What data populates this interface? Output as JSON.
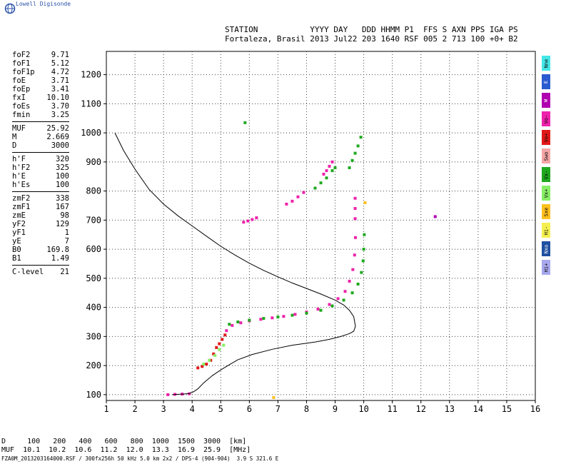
{
  "logo_text": "Lowell Digisonde",
  "header": {
    "line1": "STATION           YYYY DAY   DDD HHMM P1  FFS S AXN PPS IGA PS",
    "line2": "Fortaleza, Brasil 2013 Jul22 203 1640 RSF 005 2 713 100 +0+ B2"
  },
  "params": [
    {
      "label": "foF2",
      "value": "9.71"
    },
    {
      "label": "foF1",
      "value": "5.12"
    },
    {
      "label": "foF1p",
      "value": "4.72"
    },
    {
      "label": "foE",
      "value": "3.71"
    },
    {
      "label": "foEp",
      "value": "3.41"
    },
    {
      "label": "fxI",
      "value": "10.10"
    },
    {
      "label": "foEs",
      "value": "3.70"
    },
    {
      "label": "fmin",
      "value": "3.25"
    },
    {
      "sep": true
    },
    {
      "label": "MUF",
      "value": "25.92"
    },
    {
      "label": "M",
      "value": "2.669"
    },
    {
      "label": "D",
      "value": "3000"
    },
    {
      "sep": true
    },
    {
      "label": "h'F",
      "value": "320"
    },
    {
      "label": "h'F2",
      "value": "325"
    },
    {
      "label": "h'E",
      "value": "100"
    },
    {
      "label": "h'Es",
      "value": "100"
    },
    {
      "sep": true
    },
    {
      "label": "zmF2",
      "value": "338"
    },
    {
      "label": "zmF1",
      "value": "167"
    },
    {
      "label": "zmE",
      "value": "98"
    },
    {
      "label": "yF2",
      "value": "129"
    },
    {
      "label": "yF1",
      "value": "1"
    },
    {
      "label": "yE",
      "value": "7"
    },
    {
      "label": "B0",
      "value": "169.8"
    },
    {
      "label": "B1",
      "value": "1.49"
    },
    {
      "sep": true
    },
    {
      "label": "C-level",
      "value": "21"
    }
  ],
  "legend": [
    {
      "label": "Nne",
      "color": "#44e6e6"
    },
    {
      "label": "E",
      "color": "#2a5ad0"
    },
    {
      "label": "W",
      "color": "#b000b0"
    },
    {
      "label": "Vo-",
      "color": "#ee22aa"
    },
    {
      "label": "Vo+",
      "color": "#e01818"
    },
    {
      "label": "Swo",
      "color": "#f4a6a6"
    },
    {
      "label": "Vx-",
      "color": "#1fa81f"
    },
    {
      "label": "Vx+",
      "color": "#88ee66"
    },
    {
      "label": "Sxe",
      "color": "#ffc020"
    },
    {
      "label": "Hi-",
      "color": "#f4f050"
    },
    {
      "label": "Nxo",
      "color": "#1f4fa0"
    },
    {
      "label": "Hi+",
      "color": "#a8a8ee"
    }
  ],
  "muf_table": {
    "row1": "D     100   200   400   600   800  1000  1500  3000  [km]",
    "row2": "MUF  10.1  10.2  10.6  11.2  12.0  13.3  16.9  25.9  [MHz]"
  },
  "footer": "FZA0M_2013203164000.RSF / 300fx256h 50 kHz 5.0 km 2x2 / DPS-4 (904-904)  3.9 S 321.6 E",
  "chart_data": {
    "type": "scatter",
    "xlim": [
      1,
      16
    ],
    "ylim": [
      80,
      1280
    ],
    "x_ticks": [
      1,
      2,
      3,
      4,
      5,
      6,
      7,
      8,
      9,
      10,
      11,
      12,
      13,
      14,
      15,
      16
    ],
    "y_ticks": [
      100,
      200,
      300,
      400,
      500,
      600,
      700,
      800,
      900,
      1000,
      1100,
      1200
    ],
    "grid": true,
    "profile": {
      "x": [
        1.3,
        1.6,
        2.0,
        2.5,
        3.0,
        3.5,
        4.0,
        4.5,
        5.0,
        5.5,
        6.0,
        6.5,
        7.0,
        7.5,
        8.0,
        8.5,
        9.0,
        9.3,
        9.5,
        9.65,
        9.71,
        9.65,
        9.5,
        9.2,
        8.8,
        8.3,
        7.5,
        6.8,
        6.1,
        5.6,
        5.3,
        5.0,
        4.7,
        4.4,
        4.2,
        4.05,
        3.9,
        3.7,
        3.5,
        3.3
      ],
      "y": [
        1000,
        940,
        875,
        805,
        755,
        715,
        680,
        645,
        610,
        580,
        552,
        527,
        505,
        484,
        465,
        446,
        425,
        408,
        390,
        368,
        335,
        318,
        310,
        300,
        290,
        281,
        270,
        256,
        238,
        220,
        203,
        185,
        165,
        140,
        120,
        110,
        104,
        102,
        101,
        100
      ],
      "color": "#000000"
    },
    "echo_traces": [
      {
        "name": "Vo+",
        "color": "#e01818",
        "x": [
          4.2,
          4.35,
          4.5,
          4.65,
          4.75,
          4.85,
          4.95,
          5.05,
          5.15
        ],
        "y": [
          192,
          197,
          205,
          218,
          240,
          262,
          275,
          290,
          305
        ]
      },
      {
        "name": "Vx+",
        "color": "#88ee66",
        "x": [
          4.4,
          4.6,
          4.8,
          4.95,
          5.1
        ],
        "y": [
          205,
          218,
          235,
          255,
          270
        ]
      },
      {
        "name": "Vo-",
        "color": "#ee22aa",
        "x": [
          3.15,
          3.4,
          3.65,
          3.9,
          5.2,
          5.4,
          5.7,
          6.0,
          6.4,
          6.8,
          7.2,
          7.6,
          8.0,
          8.4,
          8.8,
          9.1,
          9.35,
          9.5,
          9.62,
          9.68,
          9.71,
          5.8,
          5.95,
          6.1,
          6.25,
          7.3,
          7.5,
          7.7,
          7.9,
          8.6,
          8.7,
          8.8,
          8.9,
          9.7,
          9.7,
          9.7
        ],
        "y": [
          100,
          101,
          102,
          103,
          320,
          338,
          347,
          354,
          359,
          364,
          369,
          376,
          384,
          394,
          410,
          430,
          455,
          490,
          530,
          580,
          640,
          693,
          697,
          702,
          708,
          755,
          765,
          780,
          795,
          858,
          870,
          885,
          900,
          705,
          740,
          775
        ]
      },
      {
        "name": "Vx-",
        "color": "#1fa81f",
        "x": [
          5.3,
          5.6,
          6.0,
          6.5,
          7.0,
          7.5,
          8.0,
          8.5,
          8.9,
          9.3,
          9.6,
          9.8,
          9.92,
          9.98,
          10.0,
          10.02,
          9.6,
          9.7,
          9.8,
          9.9,
          9.5,
          8.3,
          8.5,
          8.7,
          8.9,
          9.0,
          5.85
        ],
        "y": [
          342,
          350,
          356,
          362,
          367,
          373,
          380,
          390,
          405,
          425,
          450,
          480,
          520,
          560,
          600,
          650,
          905,
          930,
          955,
          985,
          880,
          810,
          828,
          845,
          870,
          880,
          1035
        ]
      },
      {
        "name": "W",
        "color": "#b000b0",
        "x": [
          12.5
        ],
        "y": [
          712
        ]
      },
      {
        "name": "Sxe",
        "color": "#ffc020",
        "x": [
          6.85,
          10.05
        ],
        "y": [
          90,
          760
        ]
      }
    ]
  }
}
